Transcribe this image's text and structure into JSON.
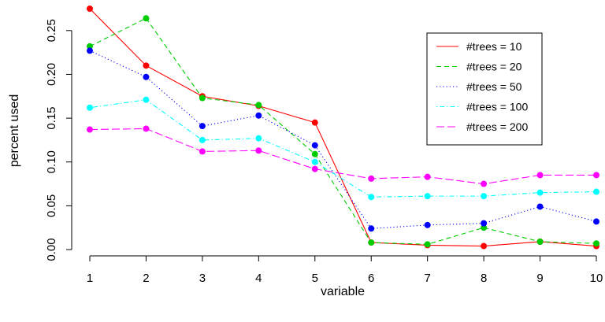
{
  "chart_data": {
    "type": "line",
    "title": "",
    "xlabel": "variable",
    "ylabel": "percent used",
    "x": [
      1,
      2,
      3,
      4,
      5,
      6,
      7,
      8,
      9,
      10
    ],
    "xlim": [
      1,
      10
    ],
    "ylim": [
      0,
      0.275
    ],
    "yticks": [
      "0.00",
      "0.05",
      "0.10",
      "0.15",
      "0.20",
      "0.25"
    ],
    "grid": false,
    "legend_position": "top-right",
    "series": [
      {
        "name": "#trees = 10",
        "color": "#ff0000",
        "line_style": "solid",
        "values": [
          0.275,
          0.21,
          0.175,
          0.164,
          0.145,
          0.008,
          0.005,
          0.004,
          0.009,
          0.004
        ]
      },
      {
        "name": "#trees = 20",
        "color": "#00cd00",
        "line_style": "dashed",
        "values": [
          0.232,
          0.264,
          0.173,
          0.165,
          0.109,
          0.008,
          0.006,
          0.025,
          0.009,
          0.007
        ]
      },
      {
        "name": "#trees = 50",
        "color": "#0000ff",
        "line_style": "dotted",
        "values": [
          0.227,
          0.197,
          0.141,
          0.153,
          0.119,
          0.024,
          0.028,
          0.03,
          0.049,
          0.032
        ]
      },
      {
        "name": "#trees = 100",
        "color": "#00ffff",
        "line_style": "dotdash",
        "values": [
          0.162,
          0.171,
          0.125,
          0.127,
          0.1,
          0.06,
          0.061,
          0.061,
          0.065,
          0.066
        ]
      },
      {
        "name": "#trees = 200",
        "color": "#ff00ff",
        "line_style": "longdash",
        "values": [
          0.137,
          0.138,
          0.112,
          0.113,
          0.092,
          0.081,
          0.083,
          0.075,
          0.085,
          0.085
        ]
      }
    ]
  }
}
